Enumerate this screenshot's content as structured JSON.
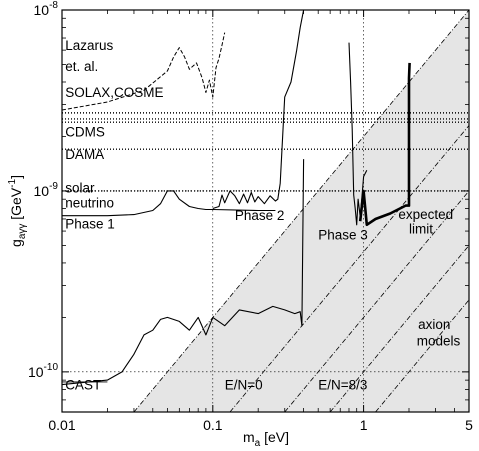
{
  "chart_data": {
    "type": "line",
    "xscale": "log",
    "yscale": "log",
    "xlim": [
      0.01,
      5
    ],
    "ylim": [
      6e-11,
      1e-08
    ],
    "xlabel": {
      "text": "m",
      "sub": "a",
      "rest": " [eV]"
    },
    "ylabel": {
      "text": "g",
      "sub": "aγγ",
      "rest": " [GeV",
      "sup": "-1",
      "end": "]"
    },
    "xticks": [
      {
        "v": 0.01,
        "label": "0.01"
      },
      {
        "v": 0.1,
        "label": "0.1"
      },
      {
        "v": 1,
        "label": "1"
      },
      {
        "v": 5,
        "label": "5"
      }
    ],
    "yticks": [
      {
        "v": 1e-10,
        "base": "10",
        "exp": "-10"
      },
      {
        "v": 1e-09,
        "base": "10",
        "exp": "-9"
      },
      {
        "v": 1e-08,
        "base": "10",
        "exp": "-8"
      }
    ],
    "grid": true,
    "shaded_region": "below E/N=0 axion model line",
    "axion_lines": [
      {
        "name": "E/N=0",
        "points": [
          [
            0.03,
            6e-11
          ],
          [
            5,
            1e-08
          ]
        ]
      },
      {
        "name": "E/N=8/3",
        "points": [
          [
            0.3,
            6e-11
          ],
          [
            5,
            1e-09
          ]
        ]
      },
      {
        "name": "axion models",
        "points": [
          [
            0.13,
            6e-11
          ],
          [
            5,
            2.3e-09
          ]
        ]
      },
      {
        "name": "",
        "points": [
          [
            0.6,
            6e-11
          ],
          [
            5,
            5e-10
          ]
        ]
      },
      {
        "name": "",
        "points": [
          [
            1.2,
            6e-11
          ],
          [
            5,
            2.5e-10
          ]
        ]
      }
    ],
    "horizontal_limits": [
      {
        "name": "SOLAX,COSME",
        "y": 2.7e-09,
        "style": "dotted"
      },
      {
        "name": "",
        "y": 2.5e-09,
        "style": "dotted"
      },
      {
        "name": "CDMS",
        "y": 2.4e-09,
        "style": "dotted"
      },
      {
        "name": "DAMA",
        "y": 1.7e-09,
        "style": "dotted"
      },
      {
        "name": "solar neutrino",
        "y": 1e-09,
        "style": "dotted"
      },
      {
        "name": "CAST",
        "y": 8.8e-11,
        "style": "solid"
      }
    ],
    "series": [
      {
        "name": "Lazarus et. al.",
        "style": "dashed",
        "x": [
          0.01,
          0.02,
          0.035,
          0.05,
          0.055,
          0.06,
          0.065,
          0.07,
          0.078,
          0.085,
          0.09,
          0.095,
          0.1,
          0.105,
          0.11,
          0.115,
          0.12
        ],
        "y": [
          2.8e-09,
          3.1e-09,
          3.6e-09,
          4.6e-09,
          5.5e-09,
          6.2e-09,
          5.5e-09,
          4.7e-09,
          5.1e-09,
          4.2e-09,
          3.5e-09,
          4.1e-09,
          3.3e-09,
          4.8e-09,
          5.4e-09,
          6.4e-09,
          7.5e-09
        ]
      },
      {
        "name": "Phase 1",
        "style": "solid",
        "x": [
          0.01,
          0.02,
          0.03,
          0.04,
          0.045,
          0.05,
          0.055,
          0.06,
          0.07,
          0.08,
          0.09,
          0.1,
          0.2,
          0.26
        ],
        "y": [
          7.3e-10,
          7.3e-10,
          7.4e-10,
          7.8e-10,
          8.5e-10,
          1e-09,
          1e-09,
          9e-10,
          8.2e-10,
          8e-10,
          7.9e-10,
          7.9e-10,
          7.8e-10,
          7.8e-10
        ]
      },
      {
        "name": "Phase 2",
        "style": "solid",
        "x": [
          0.1,
          0.11,
          0.115,
          0.12,
          0.13,
          0.14,
          0.15,
          0.16,
          0.17,
          0.18,
          0.19,
          0.2,
          0.22,
          0.24,
          0.26,
          0.27,
          0.28,
          0.3,
          0.33,
          0.36,
          0.38,
          0.4
        ],
        "y": [
          8e-10,
          8.2e-10,
          9.5e-10,
          8.6e-10,
          1e-09,
          9.4e-10,
          8.5e-10,
          9.6e-10,
          8.6e-10,
          9.8e-10,
          8.7e-10,
          9.3e-10,
          8.5e-10,
          9.4e-10,
          8.8e-10,
          9e-10,
          1.1e-09,
          3.3e-09,
          4e-09,
          6e-09,
          8e-09,
          1e-08
        ]
      },
      {
        "name": "Phase 3",
        "style": "solid",
        "x": [
          0.8,
          0.82,
          0.84,
          0.86,
          0.88,
          0.9,
          0.92,
          0.95,
          0.98,
          1.0,
          1.05
        ],
        "y": [
          6.6e-09,
          4e-09,
          2.2e-09,
          9.5e-10,
          8e-10,
          6.5e-10,
          9e-10,
          7.2e-10,
          9.8e-10,
          1.2e-09,
          1.3e-09
        ]
      },
      {
        "name": "CAST",
        "style": "solid",
        "x": [
          0.01,
          0.02,
          0.025,
          0.03,
          0.035,
          0.04,
          0.045,
          0.05,
          0.06,
          0.07,
          0.08,
          0.09,
          0.1,
          0.12,
          0.15,
          0.2,
          0.25,
          0.3,
          0.35,
          0.38,
          0.39,
          0.4
        ],
        "y": [
          8.5e-11,
          9e-11,
          1e-10,
          1.25e-10,
          1.6e-10,
          1.7e-10,
          1.95e-10,
          2e-10,
          1.9e-10,
          1.7e-10,
          2e-10,
          1.6e-10,
          2e-10,
          1.8e-10,
          2.2e-10,
          2.1e-10,
          2.3e-10,
          2.2e-10,
          2.1e-10,
          2.15e-10,
          1.8e-10,
          1.5e-09
        ]
      },
      {
        "name": "expected limit",
        "style": "bold",
        "x": [
          0.95,
          1.0,
          1.05,
          1.2,
          1.5,
          1.9,
          2.0,
          2.0,
          2.02
        ],
        "y": [
          6.8e-10,
          1e-09,
          6.5e-10,
          7e-10,
          7.5e-10,
          8.3e-10,
          8.3e-10,
          4.2e-09,
          5.1e-09
        ]
      }
    ],
    "annotations": [
      {
        "text": "Lazarus",
        "x": 0.0105,
        "y": 6e-09
      },
      {
        "text": "et. al.",
        "x": 0.0105,
        "y": 4.6e-09
      },
      {
        "text": "SOLAX,COSME",
        "x": 0.0105,
        "y": 3.3e-09
      },
      {
        "text": "CDMS",
        "x": 0.0105,
        "y": 2e-09
      },
      {
        "text": "DAMA",
        "x": 0.0105,
        "y": 1.5e-09
      },
      {
        "text": "solar",
        "x": 0.0105,
        "y": 9.8e-10
      },
      {
        "text": "neutrino",
        "x": 0.0105,
        "y": 8.1e-10
      },
      {
        "text": "Phase 1",
        "x": 0.0105,
        "y": 6.2e-10
      },
      {
        "text": "Phase 2",
        "x": 0.14,
        "y": 6.9e-10
      },
      {
        "text": "Phase 3",
        "x": 0.5,
        "y": 5.4e-10
      },
      {
        "text": "expected",
        "x": 1.7,
        "y": 7e-10
      },
      {
        "text": "limit",
        "x": 2.0,
        "y": 5.8e-10
      },
      {
        "text": "axion",
        "x": 2.3,
        "y": 1.72e-10
      },
      {
        "text": "models",
        "x": 2.25,
        "y": 1.4e-10
      },
      {
        "text": "CAST",
        "x": 0.0105,
        "y": 8e-11
      },
      {
        "text": "E/N=0",
        "x": 0.12,
        "y": 8e-11
      },
      {
        "text": "E/N=8/3",
        "x": 0.5,
        "y": 8e-11
      }
    ]
  }
}
